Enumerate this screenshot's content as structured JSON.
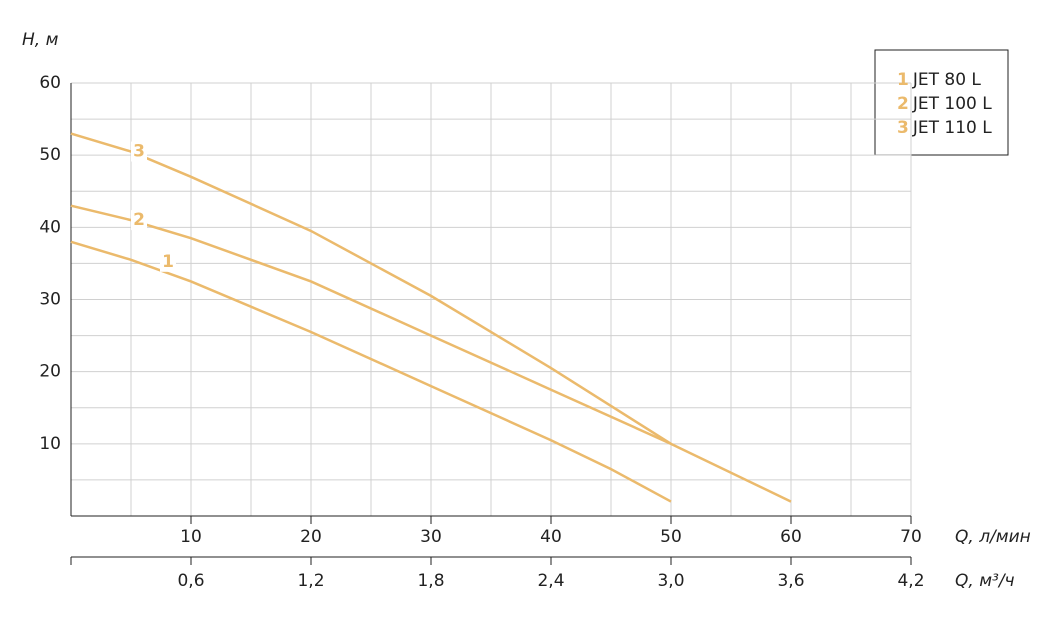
{
  "chart_data": {
    "type": "line",
    "ylabel": "H, м",
    "xlabel": "Q, л/мин",
    "x2label": "Q, м³/ч",
    "xlim": [
      0,
      70
    ],
    "ylim": [
      0,
      60
    ],
    "xticks": [
      10,
      20,
      30,
      40,
      50,
      60,
      70
    ],
    "yticks": [
      10,
      20,
      30,
      40,
      50,
      60
    ],
    "x_minor_ticks": [
      5,
      15,
      25,
      35,
      45,
      55,
      65
    ],
    "y_minor_ticks": [
      5,
      15,
      25,
      35,
      45,
      55
    ],
    "x2lim": [
      0,
      4.2
    ],
    "x2ticks": [
      {
        "value": 0.6,
        "label": "0,6"
      },
      {
        "value": 1.2,
        "label": "1,2"
      },
      {
        "value": 1.8,
        "label": "1,8"
      },
      {
        "value": 2.4,
        "label": "2,4"
      },
      {
        "value": 3.0,
        "label": "3,0"
      },
      {
        "value": 3.6,
        "label": "3,6"
      },
      {
        "value": 4.2,
        "label": "4,2"
      }
    ],
    "grid": true,
    "legend": "top-right",
    "series": [
      {
        "label": "1",
        "name": "JET 80 L",
        "color": "#ebba6c",
        "x": [
          0,
          5,
          10,
          20,
          30,
          40,
          45,
          50
        ],
        "values": [
          38,
          35.5,
          32.5,
          25.5,
          18,
          10.5,
          6.5,
          2
        ]
      },
      {
        "label": "2",
        "name": "JET 100 L",
        "color": "#ebba6c",
        "x": [
          0,
          5,
          10,
          20,
          30,
          40,
          50,
          60
        ],
        "values": [
          43,
          41,
          38.5,
          32.5,
          25,
          17.5,
          10,
          2
        ]
      },
      {
        "label": "3",
        "name": "JET 110 L",
        "color": "#ebba6c",
        "x": [
          0,
          5,
          10,
          20,
          30,
          40,
          50
        ],
        "values": [
          53,
          50.5,
          47,
          39.5,
          30.5,
          20.5,
          10
        ]
      }
    ]
  }
}
